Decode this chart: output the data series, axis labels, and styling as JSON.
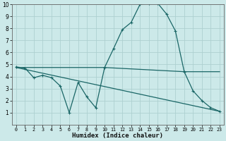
{
  "xlabel": "Humidex (Indice chaleur)",
  "xlim": [
    -0.5,
    23.5
  ],
  "ylim": [
    0,
    10
  ],
  "xticks": [
    0,
    1,
    2,
    3,
    4,
    5,
    6,
    7,
    8,
    9,
    10,
    11,
    12,
    13,
    14,
    15,
    16,
    17,
    18,
    19,
    20,
    21,
    22,
    23
  ],
  "yticks": [
    1,
    2,
    3,
    4,
    5,
    6,
    7,
    8,
    9,
    10
  ],
  "bg_color": "#cce9e9",
  "line_color": "#1a6666",
  "grid_color": "#aed0d0",
  "line1_x": [
    0,
    1,
    2,
    3,
    4,
    5,
    6,
    7,
    8,
    9,
    10,
    11,
    12,
    13,
    14,
    15,
    16,
    17,
    18,
    19,
    20,
    21,
    22,
    23
  ],
  "line1_y": [
    4.8,
    4.7,
    3.9,
    4.1,
    3.9,
    3.2,
    1.0,
    3.5,
    2.3,
    1.4,
    4.75,
    6.3,
    7.9,
    8.5,
    10.0,
    10.1,
    10.1,
    9.2,
    7.8,
    4.4,
    2.8,
    2.0,
    1.4,
    1.1
  ],
  "line2_x": [
    0,
    10,
    19,
    23
  ],
  "line2_y": [
    4.75,
    4.75,
    4.4,
    4.4
  ],
  "line3_x": [
    0,
    23
  ],
  "line3_y": [
    4.75,
    1.1
  ]
}
